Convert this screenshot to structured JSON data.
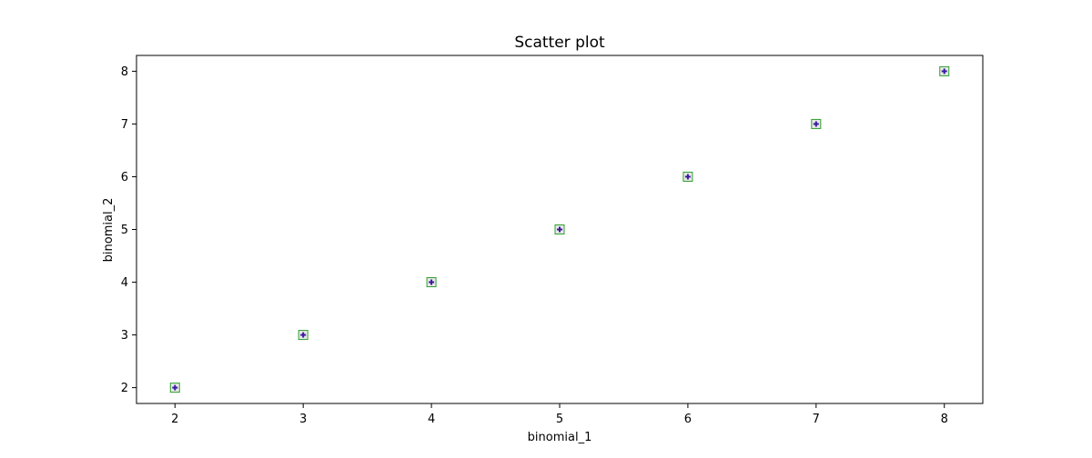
{
  "chart_data": {
    "type": "scatter",
    "title": "Scatter plot",
    "xlabel": "binomial_1",
    "ylabel": "binomial_2",
    "xlim": [
      1.7,
      8.3
    ],
    "ylim": [
      1.7,
      8.3
    ],
    "x_ticks": [
      2,
      3,
      4,
      5,
      6,
      7,
      8
    ],
    "y_ticks": [
      2,
      3,
      4,
      5,
      6,
      7,
      8
    ],
    "grid": false,
    "series": [
      {
        "x": [
          2,
          3,
          4,
          5,
          6,
          7,
          8
        ],
        "y": [
          2,
          3,
          4,
          5,
          6,
          7,
          8
        ],
        "marker": "square-with-plus",
        "marker_edge_color": "#2ca02c",
        "marker_face_color": "#e8e8e8",
        "marker_plus_color": "#3a1a9e"
      }
    ]
  }
}
